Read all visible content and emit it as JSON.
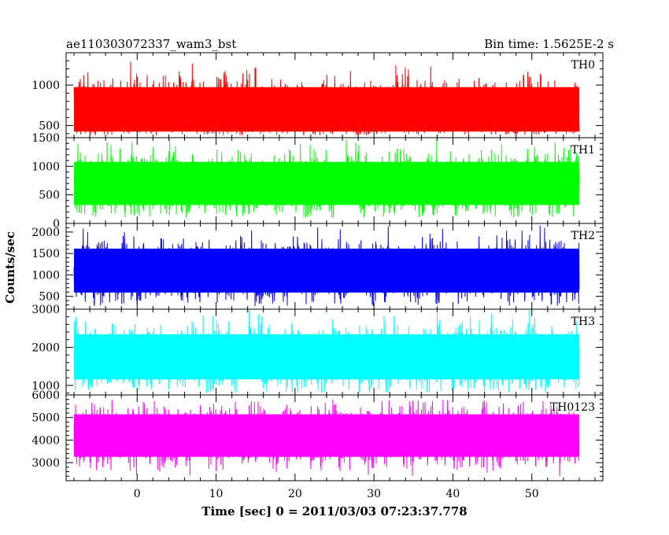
{
  "header": {
    "left_title": "ae110303072337_wam3_bst",
    "right_title": "Bin time: 1.5625E-2 s"
  },
  "chart_data": {
    "type": "line",
    "title": "ae110303072337_wam3_bst",
    "subtitle": "Bin time: 1.5625E-2 s",
    "xlabel": "Time [sec] 0 = 2011/03/03 07:23:37.778",
    "ylabel": "Counts/sec",
    "xlim": [
      -9,
      59
    ],
    "x_data_range": [
      -8,
      56
    ],
    "x_ticks": [
      0,
      10,
      20,
      30,
      40,
      50
    ],
    "x_tick_labels": [
      "0",
      "10",
      "20",
      "30",
      "40",
      "50"
    ],
    "grid": false,
    "panels": [
      {
        "name": "TH0",
        "color": "#ff0000",
        "ylim": [
          350,
          1400
        ],
        "y_ticks": [
          500,
          1000
        ],
        "y_tick_labels": [
          "500",
          "1000"
        ],
        "mean": 700,
        "min": 380,
        "max": 1400
      },
      {
        "name": "TH1",
        "color": "#00ff00",
        "ylim": [
          0,
          1500
        ],
        "y_ticks": [
          0,
          500,
          1000,
          1500
        ],
        "y_tick_labels": [
          "0",
          "500",
          "1000",
          "1500"
        ],
        "mean": 700,
        "min": 100,
        "max": 1500
      },
      {
        "name": "TH2",
        "color": "#0000ff",
        "ylim": [
          200,
          2200
        ],
        "y_ticks": [
          500,
          1000,
          1500,
          2000
        ],
        "y_tick_labels": [
          "500",
          "1000",
          "1500",
          "2000"
        ],
        "mean": 1100,
        "min": 250,
        "max": 2150
      },
      {
        "name": "TH3",
        "color": "#00ffff",
        "ylim": [
          750,
          3000
        ],
        "y_ticks": [
          1000,
          2000,
          3000
        ],
        "y_tick_labels": [
          "1000",
          "2000",
          "3000"
        ],
        "mean": 1750,
        "min": 800,
        "max": 3000
      },
      {
        "name": "TH0123",
        "color": "#ff00ff",
        "ylim": [
          2200,
          6000
        ],
        "y_ticks": [
          3000,
          4000,
          5000,
          6000
        ],
        "y_tick_labels": [
          "3000",
          "4000",
          "5000",
          "6000"
        ],
        "mean": 4200,
        "min": 2300,
        "max": 5800
      }
    ]
  }
}
